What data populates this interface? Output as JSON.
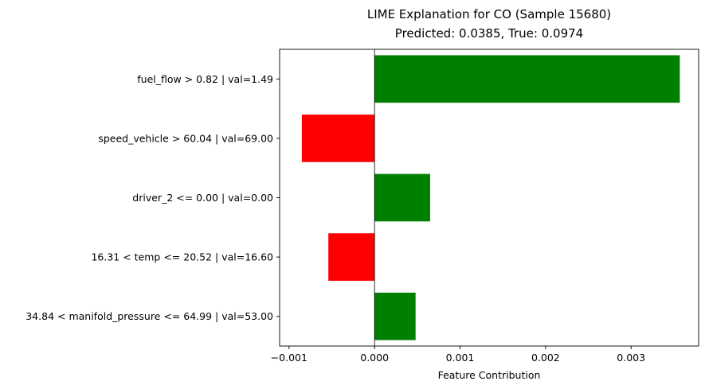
{
  "chart_data": {
    "type": "bar",
    "orientation": "horizontal",
    "title": "LIME Explanation for CO (Sample 15680)",
    "subtitle": "Predicted: 0.0385, True: 0.0974",
    "xlabel": "Feature Contribution",
    "ylabel": "",
    "categories": [
      "fuel_flow > 0.82 | val=1.49",
      "speed_vehicle > 60.04 | val=69.00",
      "driver_2 <= 0.00 | val=0.00",
      "16.31 < temp <= 20.52 | val=16.60",
      "34.84 < manifold_pressure <= 64.99 | val=53.00"
    ],
    "values": [
      0.00357,
      -0.00085,
      0.00065,
      -0.00054,
      0.00048
    ],
    "xlim": [
      -0.00111,
      0.00379
    ],
    "xticks": [
      -0.001,
      0.0,
      0.001,
      0.002,
      0.003
    ],
    "xtick_labels": [
      "−0.001",
      "0.000",
      "0.001",
      "0.002",
      "0.003"
    ],
    "grid": false,
    "legend": "none",
    "colors": {
      "positive": "#008000",
      "negative": "#ff0000",
      "zero_line": "#000000"
    }
  }
}
